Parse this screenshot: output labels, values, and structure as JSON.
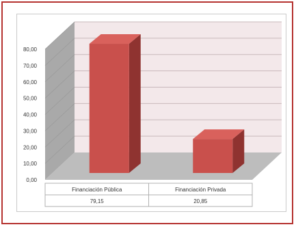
{
  "chart_data": {
    "type": "bar",
    "style": "3d",
    "categories": [
      "Financiación Pública",
      "Financiación Privada"
    ],
    "values": [
      79.15,
      20.85
    ],
    "value_labels": [
      "79,15",
      "20,85"
    ],
    "ylim": [
      0,
      80
    ],
    "yticks": [
      "0,00",
      "10,00",
      "20,00",
      "30,00",
      "40,00",
      "50,00",
      "60,00",
      "70,00",
      "80,00"
    ],
    "grid": true,
    "data_table": true,
    "title": "",
    "xlabel": "",
    "ylabel": ""
  },
  "colors": {
    "frame_border": "#b5322f",
    "bar_front": "#c9504c",
    "bar_side": "#8f3330",
    "bar_top": "#d9615c",
    "back_wall": "#f3e8ea",
    "side_wall": "#a9a9a9",
    "floor": "#bdbdbd",
    "grid": "#c8b8bb"
  }
}
